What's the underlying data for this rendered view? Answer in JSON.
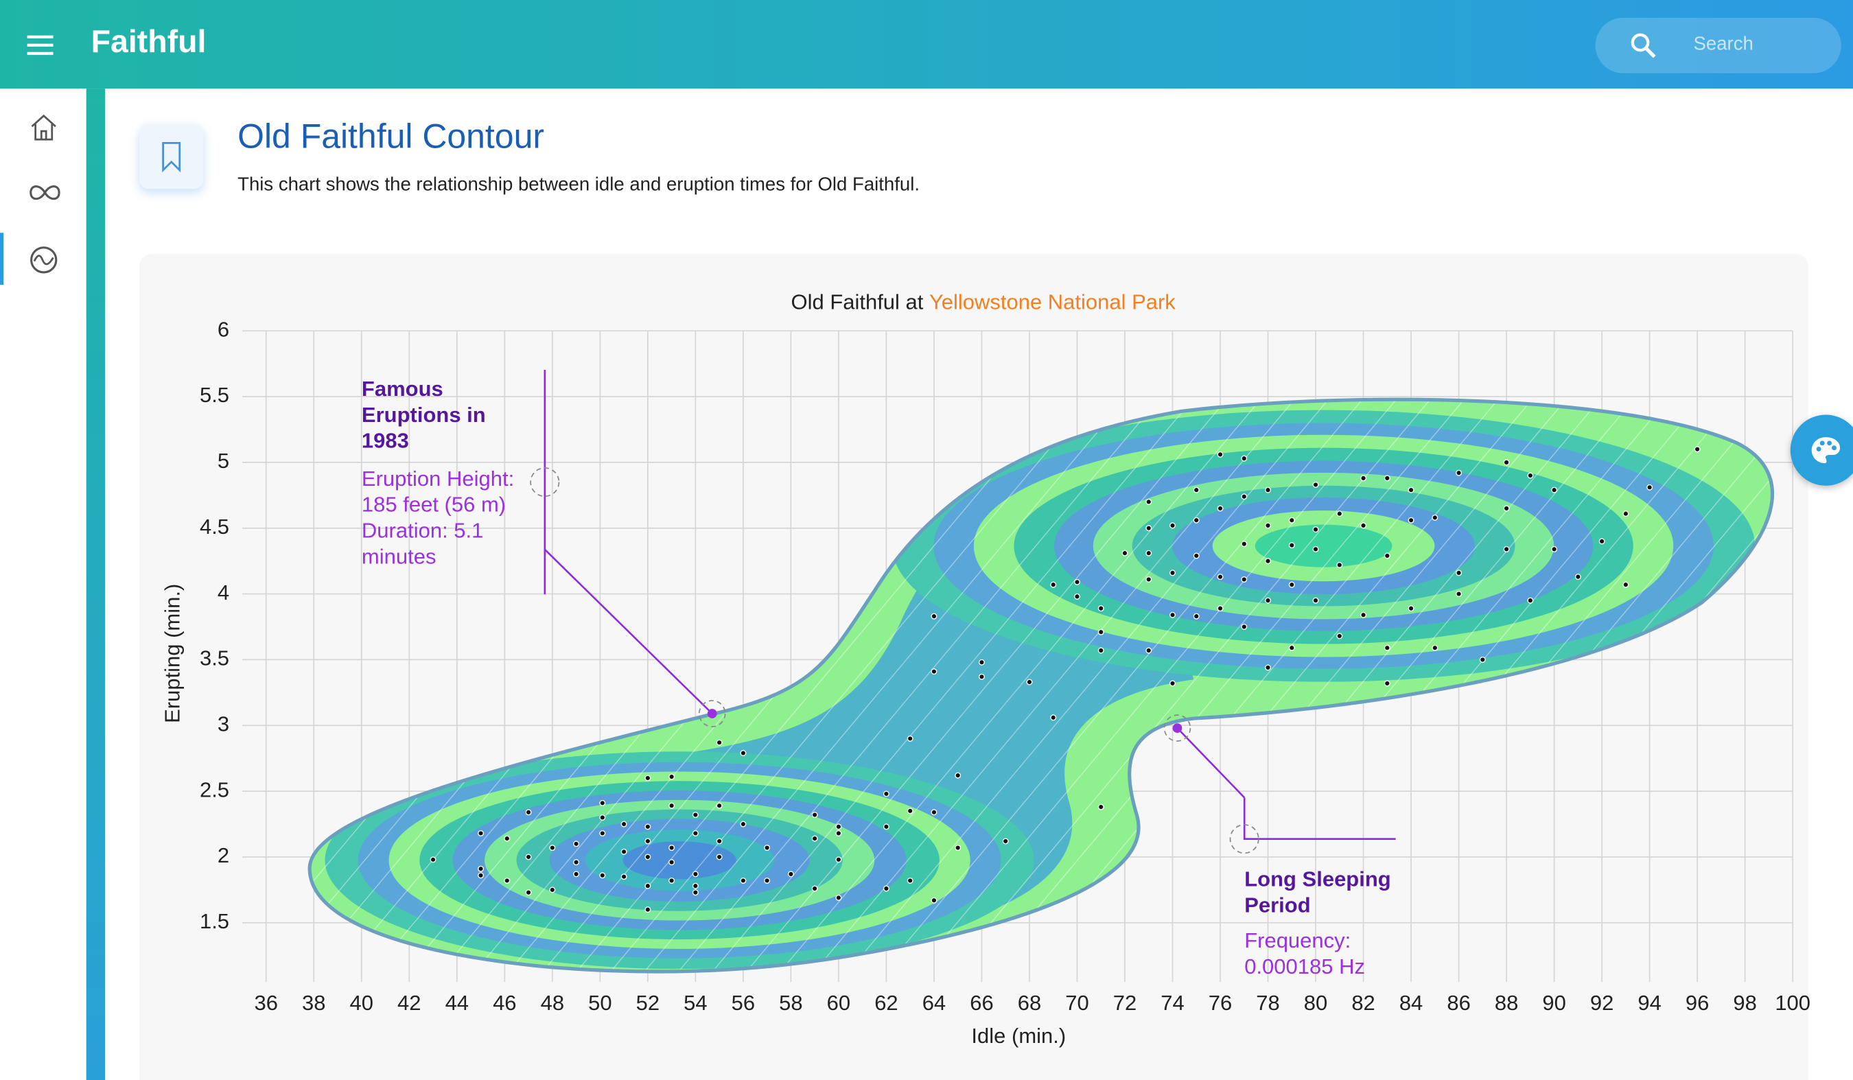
{
  "app": {
    "title": "Faithful",
    "search_placeholder": "Search"
  },
  "page": {
    "title": "Old Faithful Contour",
    "description": "This chart shows the relationship between idle and eruption times for Old Faithful."
  },
  "chart_data": {
    "type": "contour",
    "title": "Old Faithful at",
    "title_highlight": "Yellowstone National Park",
    "x_label": "Idle (min.)",
    "y_label": "Erupting (min.)",
    "xlim": [
      35,
      100
    ],
    "ylim": [
      1.05,
      6
    ],
    "xticks": [
      36,
      38,
      40,
      42,
      44,
      46,
      48,
      50,
      52,
      54,
      56,
      58,
      60,
      62,
      64,
      66,
      68,
      70,
      72,
      74,
      76,
      78,
      80,
      82,
      84,
      86,
      88,
      90,
      92,
      94,
      96,
      98,
      100
    ],
    "yticks": [
      1.5,
      2,
      2.5,
      3,
      3.5,
      4,
      4.5,
      5,
      5.5,
      6
    ],
    "grid": true,
    "point_color": "#111111",
    "x": [
      43,
      45,
      45,
      45,
      46.1,
      46.1,
      47,
      47,
      47,
      48,
      48,
      49,
      49,
      49,
      50.1,
      50.1,
      50.1,
      50.1,
      51,
      51,
      51,
      52,
      52,
      52,
      52,
      52,
      52,
      53,
      53,
      53,
      53,
      53,
      54,
      54,
      54,
      54,
      54,
      55,
      55,
      55,
      55,
      56,
      56,
      56,
      57,
      57,
      58,
      59,
      59,
      59,
      60,
      60,
      60,
      60,
      62,
      62,
      62,
      63,
      63,
      63,
      64,
      64,
      64,
      64,
      65,
      65,
      66,
      66,
      67,
      68,
      69,
      69,
      71,
      71,
      70,
      70,
      71,
      71,
      72,
      73,
      73,
      73,
      73,
      73,
      74,
      74,
      74,
      74,
      75,
      75,
      75,
      75,
      76,
      76,
      76,
      76,
      77,
      77,
      77,
      77,
      77,
      78,
      78,
      78,
      78,
      78,
      79,
      79,
      79,
      79,
      80,
      80,
      80,
      80,
      81,
      81,
      81,
      82,
      82,
      82,
      83,
      83,
      83,
      83,
      84,
      84,
      84,
      85,
      85,
      86,
      86,
      86,
      87,
      88,
      88,
      88,
      89,
      89,
      90,
      90,
      91,
      92,
      93,
      93,
      94,
      96
    ],
    "y": [
      1.98,
      2.18,
      1.91,
      1.86,
      2.14,
      1.82,
      2.34,
      2,
      1.73,
      2.07,
      1.75,
      2.1,
      1.96,
      1.87,
      2.41,
      2.3,
      2.18,
      1.86,
      2.25,
      2.04,
      1.85,
      2.6,
      2.23,
      2.12,
      2,
      1.78,
      1.6,
      2.61,
      2.39,
      2.07,
      1.96,
      1.82,
      2.32,
      2.18,
      1.87,
      1.78,
      1.73,
      2.87,
      2.39,
      2.12,
      2,
      2.79,
      2.25,
      1.82,
      2.07,
      1.82,
      1.87,
      2.32,
      2.14,
      1.76,
      2.23,
      2.18,
      1.98,
      1.69,
      2.48,
      2.23,
      1.76,
      2.9,
      2.35,
      1.82,
      3.83,
      3.41,
      2.34,
      1.67,
      2.62,
      2.07,
      3.48,
      3.37,
      2.12,
      3.33,
      4.07,
      3.06,
      3.71,
      2.38,
      4.09,
      3.98,
      3.89,
      3.57,
      4.31,
      4.7,
      4.5,
      4.31,
      4.11,
      3.57,
      4.52,
      4.16,
      3.84,
      3.32,
      4.79,
      4.56,
      4.29,
      3.83,
      5.06,
      4.65,
      4.13,
      3.89,
      5.03,
      4.74,
      4.38,
      4.11,
      3.75,
      4.79,
      4.52,
      4.25,
      3.95,
      3.44,
      4.56,
      4.37,
      4.07,
      3.59,
      4.83,
      4.49,
      4.34,
      3.95,
      4.61,
      4.22,
      3.68,
      4.88,
      4.52,
      3.84,
      4.88,
      4.29,
      3.59,
      3.32,
      4.79,
      4.56,
      3.89,
      4.58,
      3.59,
      4.92,
      4.16,
      4,
      3.5,
      5,
      4.65,
      4.34,
      4.9,
      3.95,
      4.79,
      4.34,
      4.13,
      4.4,
      4.61,
      4.07,
      4.81,
      5.1
    ],
    "annotations": [
      {
        "title": "Famous Eruptions in 1983",
        "lines": [
          "Eruption Height: 185 feet (56 m)",
          "Duration: 5.1 minutes"
        ],
        "x": 54.7,
        "y": 3.09
      },
      {
        "title": "Long Sleeping Period",
        "lines": [
          "Frequency: 0.000185 Hz"
        ],
        "x": 74.2,
        "y": 2.98
      }
    ]
  }
}
